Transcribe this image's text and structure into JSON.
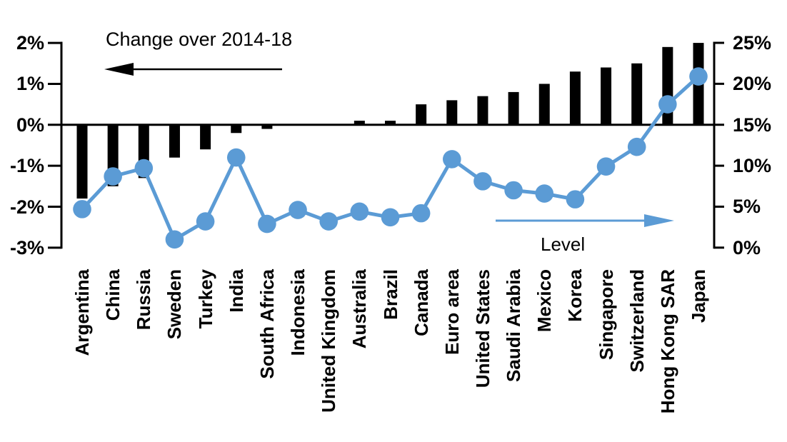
{
  "chart_data": {
    "type": "bar+line combo",
    "categories": [
      "Argentina",
      "China",
      "Russia",
      "Sweden",
      "Turkey",
      "India",
      "South Africa",
      "Indonesia",
      "United Kingdom",
      "Australia",
      "Brazil",
      "Canada",
      "Euro area",
      "United States",
      "Saudi Arabia",
      "Mexico",
      "Korea",
      "Singapore",
      "Switzerland",
      "Hong Kong SAR",
      "Japan"
    ],
    "series": [
      {
        "name": "Change over 2014-18",
        "type": "bar",
        "axis": "left",
        "unit": "%",
        "color": "#000000",
        "values": [
          -1.8,
          -1.5,
          -1.3,
          -0.8,
          -0.6,
          -0.2,
          -0.1,
          0,
          0,
          0.1,
          0.1,
          0.5,
          0.6,
          0.7,
          0.8,
          1.0,
          1.3,
          1.4,
          1.5,
          1.9,
          2.0
        ]
      },
      {
        "name": "Level",
        "type": "line",
        "axis": "right",
        "unit": "%",
        "color": "#5B9BD5",
        "values": [
          4.7,
          8.7,
          9.7,
          1.0,
          3.2,
          11.0,
          2.9,
          4.6,
          3.2,
          4.4,
          3.7,
          4.2,
          10.8,
          8.1,
          7.0,
          6.6,
          5.9,
          9.9,
          12.3,
          17.5,
          20.9
        ]
      }
    ],
    "left_axis": {
      "tick_labels": [
        "2%",
        "1%",
        "0%",
        "-1%",
        "-2%",
        "-3%"
      ],
      "tick_values": [
        2,
        1,
        0,
        -1,
        -2,
        -3
      ],
      "min": -3,
      "max": 2,
      "unit": "%"
    },
    "right_axis": {
      "tick_labels": [
        "25%",
        "20%",
        "15%",
        "10%",
        "5%",
        "0%"
      ],
      "tick_values": [
        25,
        20,
        15,
        10,
        5,
        0
      ],
      "min": 0,
      "max": 25,
      "unit": "%"
    },
    "annotations": [
      {
        "text": "Change over 2014-18",
        "arrow": "left",
        "arrow_color": "#000000"
      },
      {
        "text": "Level",
        "arrow": "right",
        "arrow_color": "#5B9BD5"
      }
    ],
    "grid": false,
    "legend_position": "in-plot annotations"
  },
  "colors": {
    "bar": "#000000",
    "line": "#5B9BD5",
    "background": "#FFFFFF",
    "axis": "#000000"
  }
}
